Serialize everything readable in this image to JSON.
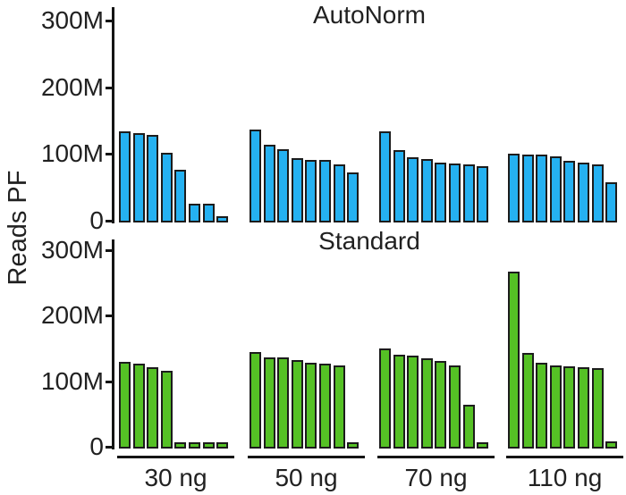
{
  "chart_data": {
    "type": "bar",
    "title_top_panel": "AutoNorm",
    "title_bottom_panel": "Standard",
    "ylabel": "Reads PF",
    "yticks": [
      {
        "value": 0,
        "label": "0"
      },
      {
        "value": 100,
        "label": "100M"
      },
      {
        "value": 200,
        "label": "200M"
      },
      {
        "value": 300,
        "label": "300M"
      }
    ],
    "ylim": [
      0,
      300
    ],
    "y_units": "millions of reads",
    "grid": false,
    "legend": "none",
    "group_labels": [
      "30 ng",
      "50 ng",
      "70 ng",
      "110 ng"
    ],
    "panels": [
      {
        "title": "AutoNorm",
        "color": "#25b1f1",
        "groups": [
          {
            "label": "30 ng",
            "values": [
              131,
              129,
              126,
              99,
              74,
              23,
              23,
              4
            ]
          },
          {
            "label": "50 ng",
            "values": [
              134,
              111,
              105,
              91,
              89,
              88,
              81,
              70
            ]
          },
          {
            "label": "70 ng",
            "values": [
              131,
              103,
              92,
              90,
              84,
              83,
              81,
              79
            ]
          },
          {
            "label": "110 ng",
            "values": [
              98,
              96,
              96,
              94,
              87,
              85,
              81,
              55
            ]
          }
        ]
      },
      {
        "title": "Standard",
        "color": "#55c125",
        "groups": [
          {
            "label": "30 ng",
            "values": [
              127,
              124,
              119,
              113,
              4,
              4,
              4,
              4
            ]
          },
          {
            "label": "50 ng",
            "values": [
              142,
              134,
              134,
              129,
              126,
              124,
              122,
              4
            ]
          },
          {
            "label": "70 ng",
            "values": [
              148,
              138,
              136,
              132,
              128,
              122,
              62,
              4
            ]
          },
          {
            "label": "110 ng",
            "values": [
              265,
              140,
              125,
              122,
              120,
              119,
              117,
              5
            ]
          }
        ]
      }
    ],
    "colors": {
      "bar_blue": "#25b1f1",
      "bar_green": "#55c125",
      "bar_outline": "#1c1c1c",
      "axis": "#141414",
      "text": "#212121"
    }
  }
}
